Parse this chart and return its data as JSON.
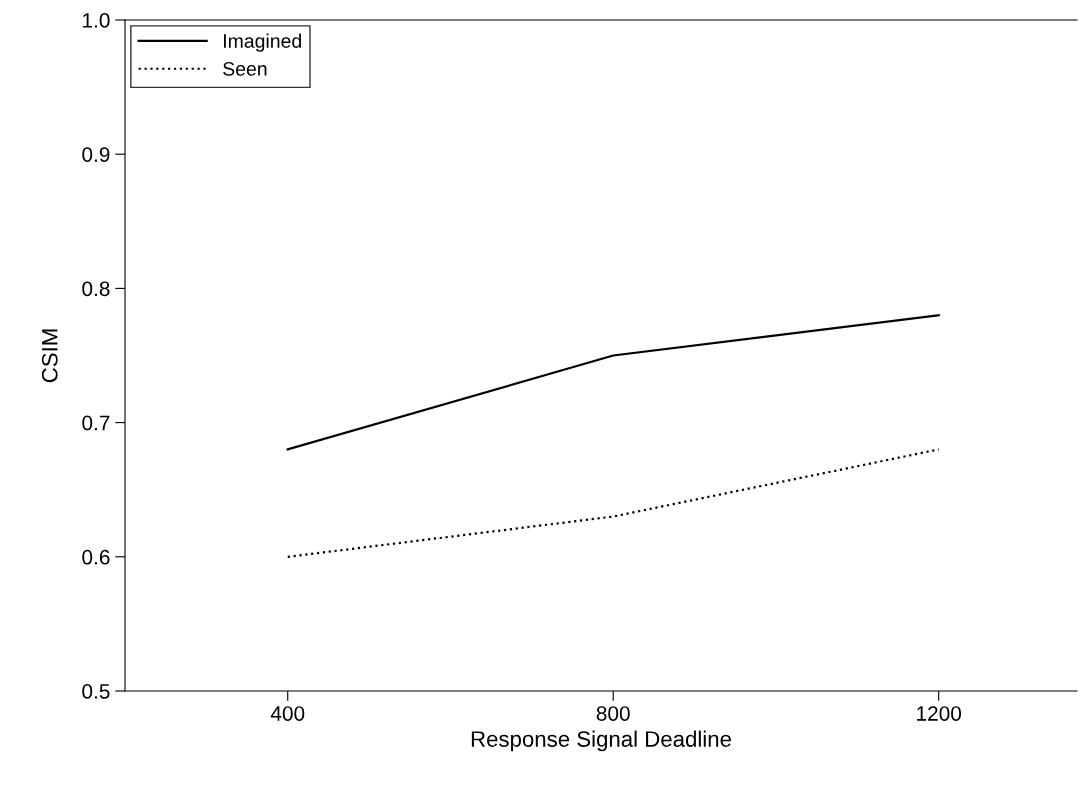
{
  "chart_data": {
    "type": "line",
    "xlabel": "Response Signal Deadline",
    "ylabel": "CSIM",
    "x": [
      400,
      800,
      1200
    ],
    "series": [
      {
        "name": "Imagined",
        "color": "#000000",
        "line_style": "solid",
        "values": [
          0.68,
          0.75,
          0.78
        ]
      },
      {
        "name": "Seen",
        "color": "#000000",
        "line_style": "dotted",
        "values": [
          0.6,
          0.63,
          0.68
        ]
      }
    ],
    "xlim": [
      200,
      1370
    ],
    "xticks": [
      400,
      800,
      1200
    ],
    "ylim": [
      0.5,
      1.0
    ],
    "yticks": [
      0.5,
      0.6,
      0.7,
      0.8,
      0.9,
      {
        "value": 1.0,
        "label": "1.0"
      }
    ],
    "grid": false,
    "legend": "top left",
    "marker": "none"
  }
}
